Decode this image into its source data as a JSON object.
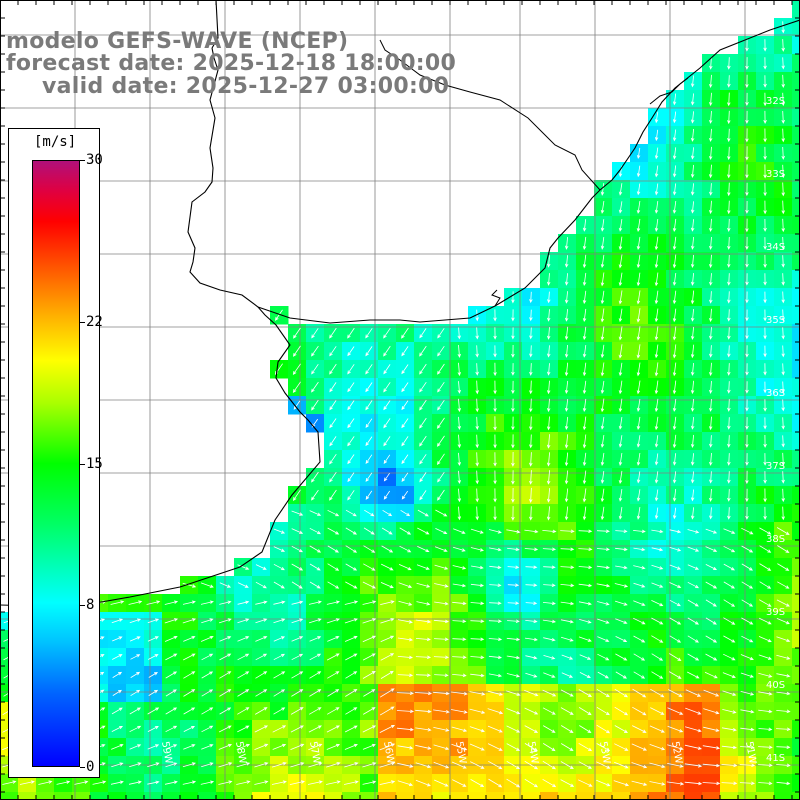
{
  "title": {
    "line1": "modelo GEFS-WAVE (NCEP)",
    "line2": "forecast date: 2025-12-18 18:00:00",
    "line3": "valid date: 2025-12-27 03:00:00"
  },
  "colorbar": {
    "units": "[m/s]",
    "min": 0,
    "max": 30,
    "ticks": [
      {
        "value": 30,
        "label": "30"
      },
      {
        "value": 22,
        "label": "22"
      },
      {
        "value": 15,
        "label": "15"
      },
      {
        "value": 8,
        "label": "8"
      },
      {
        "value": 0,
        "label": "0"
      }
    ]
  },
  "map": {
    "variable": "wind speed",
    "latitude_labels": [
      "32S",
      "33S",
      "34S",
      "35S",
      "36S",
      "37S",
      "38S",
      "39S",
      "40S",
      "41S"
    ],
    "longitude_labels": [
      "61W",
      "60W",
      "59W",
      "58W",
      "57W",
      "56W",
      "55W",
      "54W",
      "53W",
      "52W",
      "51W"
    ],
    "colors": {
      "land": "#ffffff",
      "coastline": "#000000",
      "grid": "#808080",
      "vectors": "#ffffff",
      "title_text": "#7a7a7a"
    }
  }
}
